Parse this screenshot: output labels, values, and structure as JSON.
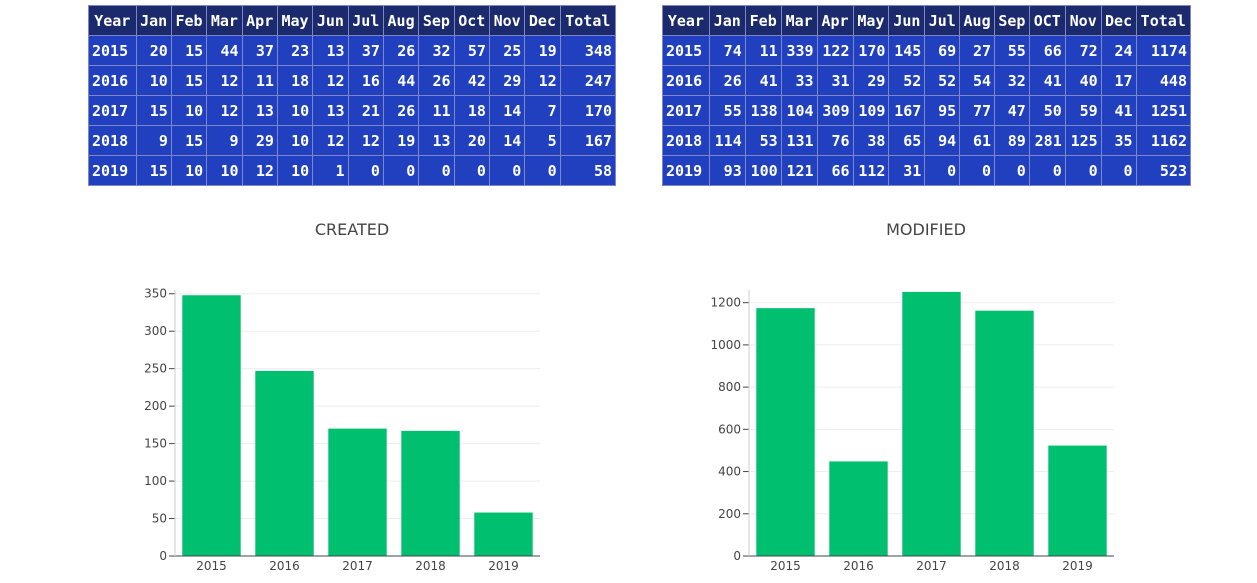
{
  "tables": [
    {
      "headers": [
        "Year",
        "Jan",
        "Feb",
        "Mar",
        "Apr",
        "May",
        "Jun",
        "Jul",
        "Aug",
        "Sep",
        "Oct",
        "Nov",
        "Dec",
        "Total"
      ],
      "rows": [
        [
          "2015",
          "20",
          "15",
          "44",
          "37",
          "23",
          "13",
          "37",
          "26",
          "32",
          "57",
          "25",
          "19",
          "348"
        ],
        [
          "2016",
          "10",
          "15",
          "12",
          "11",
          "18",
          "12",
          "16",
          "44",
          "26",
          "42",
          "29",
          "12",
          "247"
        ],
        [
          "2017",
          "15",
          "10",
          "12",
          "13",
          "10",
          "13",
          "21",
          "26",
          "11",
          "18",
          "14",
          "7",
          "170"
        ],
        [
          "2018",
          "9",
          "15",
          "9",
          "29",
          "10",
          "12",
          "12",
          "19",
          "13",
          "20",
          "14",
          "5",
          "167"
        ],
        [
          "2019",
          "15",
          "10",
          "10",
          "12",
          "10",
          "1",
          "0",
          "0",
          "0",
          "0",
          "0",
          "0",
          "58"
        ]
      ]
    },
    {
      "headers": [
        "Year",
        "Jan",
        "Feb",
        "Mar",
        "Apr",
        "May",
        "Jun",
        "Jul",
        "Aug",
        "Sep",
        "OCT",
        "Nov",
        "Dec",
        "Total"
      ],
      "rows": [
        [
          "2015",
          "74",
          "11",
          "339",
          "122",
          "170",
          "145",
          "69",
          "27",
          "55",
          "66",
          "72",
          "24",
          "1174"
        ],
        [
          "2016",
          "26",
          "41",
          "33",
          "31",
          "29",
          "52",
          "52",
          "54",
          "32",
          "41",
          "40",
          "17",
          "448"
        ],
        [
          "2017",
          "55",
          "138",
          "104",
          "309",
          "109",
          "167",
          "95",
          "77",
          "47",
          "50",
          "59",
          "41",
          "1251"
        ],
        [
          "2018",
          "114",
          "53",
          "131",
          "76",
          "38",
          "65",
          "94",
          "61",
          "89",
          "281",
          "125",
          "35",
          "1162"
        ],
        [
          "2019",
          "93",
          "100",
          "121",
          "66",
          "112",
          "31",
          "0",
          "0",
          "0",
          "0",
          "0",
          "0",
          "523"
        ]
      ]
    }
  ],
  "colors": {
    "bar": "#00bf6f",
    "header_bg": "#1a2a6c",
    "cell_bg": "#2040c0",
    "cell_text": "#ffffff",
    "grid": "#eeeeee"
  },
  "chart_data": [
    {
      "type": "bar",
      "title": "CREATED",
      "categories": [
        "2015",
        "2016",
        "2017",
        "2018",
        "2019"
      ],
      "values": [
        348,
        247,
        170,
        167,
        58
      ],
      "ylim": [
        0,
        355
      ],
      "yticks": [
        0,
        50,
        100,
        150,
        200,
        250,
        300,
        350
      ],
      "xlabel": "",
      "ylabel": "",
      "grid": true
    },
    {
      "type": "bar",
      "title": "MODIFIED",
      "categories": [
        "2015",
        "2016",
        "2017",
        "2018",
        "2019"
      ],
      "values": [
        1174,
        448,
        1251,
        1162,
        523
      ],
      "ylim": [
        0,
        1260
      ],
      "yticks": [
        0,
        200,
        400,
        600,
        800,
        1000,
        1200
      ],
      "xlabel": "",
      "ylabel": "",
      "grid": true
    }
  ]
}
